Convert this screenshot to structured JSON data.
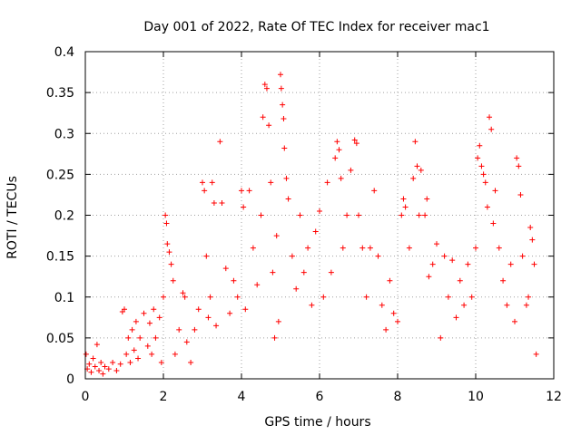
{
  "chart_data": {
    "type": "scatter",
    "title": "Day 001 of 2022, Rate Of TEC Index for receiver mac1",
    "xlabel": "GPS time / hours",
    "ylabel": "ROTI / TECUs",
    "xlim": [
      0,
      12
    ],
    "ylim": [
      0,
      0.4
    ],
    "x_ticks": [
      "0",
      "2",
      "4",
      "6",
      "8",
      "10",
      "12"
    ],
    "y_ticks": [
      "0",
      "0.05",
      "0.1",
      "0.15",
      "0.2",
      "0.25",
      "0.3",
      "0.35",
      "0.4"
    ],
    "grid": true,
    "marker": "+",
    "color": "#ff0000",
    "series": [
      {
        "points": [
          [
            0.02,
            0.03
          ],
          [
            0.05,
            0.012
          ],
          [
            0.1,
            0.018
          ],
          [
            0.15,
            0.008
          ],
          [
            0.2,
            0.025
          ],
          [
            0.25,
            0.015
          ],
          [
            0.3,
            0.042
          ],
          [
            0.35,
            0.01
          ],
          [
            0.4,
            0.02
          ],
          [
            0.45,
            0.006
          ],
          [
            0.5,
            0.015
          ],
          [
            0.6,
            0.012
          ],
          [
            0.7,
            0.02
          ],
          [
            0.8,
            0.01
          ],
          [
            0.9,
            0.018
          ],
          [
            0.95,
            0.082
          ],
          [
            1.0,
            0.085
          ],
          [
            1.05,
            0.03
          ],
          [
            1.1,
            0.05
          ],
          [
            1.15,
            0.02
          ],
          [
            1.2,
            0.06
          ],
          [
            1.25,
            0.035
          ],
          [
            1.3,
            0.07
          ],
          [
            1.35,
            0.025
          ],
          [
            1.4,
            0.05
          ],
          [
            1.5,
            0.08
          ],
          [
            1.6,
            0.04
          ],
          [
            1.65,
            0.068
          ],
          [
            1.7,
            0.03
          ],
          [
            1.75,
            0.085
          ],
          [
            1.8,
            0.05
          ],
          [
            1.9,
            0.075
          ],
          [
            1.95,
            0.02
          ],
          [
            2.0,
            0.1
          ],
          [
            2.05,
            0.2
          ],
          [
            2.08,
            0.19
          ],
          [
            2.1,
            0.165
          ],
          [
            2.15,
            0.155
          ],
          [
            2.2,
            0.14
          ],
          [
            2.25,
            0.12
          ],
          [
            2.3,
            0.03
          ],
          [
            2.4,
            0.06
          ],
          [
            2.5,
            0.105
          ],
          [
            2.55,
            0.1
          ],
          [
            2.6,
            0.045
          ],
          [
            2.7,
            0.02
          ],
          [
            2.8,
            0.06
          ],
          [
            2.9,
            0.085
          ],
          [
            3.0,
            0.24
          ],
          [
            3.05,
            0.23
          ],
          [
            3.1,
            0.15
          ],
          [
            3.15,
            0.075
          ],
          [
            3.2,
            0.1
          ],
          [
            3.25,
            0.24
          ],
          [
            3.3,
            0.215
          ],
          [
            3.35,
            0.065
          ],
          [
            3.45,
            0.29
          ],
          [
            3.5,
            0.215
          ],
          [
            3.6,
            0.135
          ],
          [
            3.7,
            0.08
          ],
          [
            3.8,
            0.12
          ],
          [
            3.9,
            0.1
          ],
          [
            4.0,
            0.23
          ],
          [
            4.05,
            0.21
          ],
          [
            4.1,
            0.085
          ],
          [
            4.2,
            0.23
          ],
          [
            4.3,
            0.16
          ],
          [
            4.4,
            0.115
          ],
          [
            4.5,
            0.2
          ],
          [
            4.55,
            0.32
          ],
          [
            4.6,
            0.36
          ],
          [
            4.65,
            0.355
          ],
          [
            4.7,
            0.31
          ],
          [
            4.75,
            0.24
          ],
          [
            4.8,
            0.13
          ],
          [
            4.85,
            0.05
          ],
          [
            4.9,
            0.175
          ],
          [
            4.95,
            0.07
          ],
          [
            5.0,
            0.372
          ],
          [
            5.02,
            0.355
          ],
          [
            5.05,
            0.335
          ],
          [
            5.08,
            0.318
          ],
          [
            5.1,
            0.282
          ],
          [
            5.15,
            0.245
          ],
          [
            5.2,
            0.22
          ],
          [
            5.3,
            0.15
          ],
          [
            5.4,
            0.11
          ],
          [
            5.5,
            0.2
          ],
          [
            5.6,
            0.13
          ],
          [
            5.7,
            0.16
          ],
          [
            5.8,
            0.09
          ],
          [
            5.9,
            0.18
          ],
          [
            6.0,
            0.205
          ],
          [
            6.1,
            0.1
          ],
          [
            6.2,
            0.24
          ],
          [
            6.3,
            0.13
          ],
          [
            6.4,
            0.27
          ],
          [
            6.45,
            0.29
          ],
          [
            6.5,
            0.28
          ],
          [
            6.55,
            0.245
          ],
          [
            6.6,
            0.16
          ],
          [
            6.7,
            0.2
          ],
          [
            6.8,
            0.255
          ],
          [
            6.9,
            0.292
          ],
          [
            6.95,
            0.288
          ],
          [
            7.0,
            0.2
          ],
          [
            7.1,
            0.16
          ],
          [
            7.2,
            0.1
          ],
          [
            7.3,
            0.16
          ],
          [
            7.4,
            0.23
          ],
          [
            7.5,
            0.15
          ],
          [
            7.6,
            0.09
          ],
          [
            7.7,
            0.06
          ],
          [
            7.8,
            0.12
          ],
          [
            7.9,
            0.08
          ],
          [
            8.0,
            0.07
          ],
          [
            8.1,
            0.2
          ],
          [
            8.15,
            0.22
          ],
          [
            8.2,
            0.21
          ],
          [
            8.3,
            0.16
          ],
          [
            8.4,
            0.245
          ],
          [
            8.45,
            0.29
          ],
          [
            8.5,
            0.26
          ],
          [
            8.55,
            0.2
          ],
          [
            8.6,
            0.255
          ],
          [
            8.7,
            0.2
          ],
          [
            8.75,
            0.22
          ],
          [
            8.8,
            0.125
          ],
          [
            8.9,
            0.14
          ],
          [
            9.0,
            0.165
          ],
          [
            9.1,
            0.05
          ],
          [
            9.2,
            0.15
          ],
          [
            9.3,
            0.1
          ],
          [
            9.4,
            0.145
          ],
          [
            9.5,
            0.075
          ],
          [
            9.6,
            0.12
          ],
          [
            9.7,
            0.09
          ],
          [
            9.8,
            0.14
          ],
          [
            9.9,
            0.1
          ],
          [
            10.0,
            0.16
          ],
          [
            10.05,
            0.27
          ],
          [
            10.1,
            0.285
          ],
          [
            10.15,
            0.26
          ],
          [
            10.2,
            0.25
          ],
          [
            10.25,
            0.24
          ],
          [
            10.3,
            0.21
          ],
          [
            10.35,
            0.32
          ],
          [
            10.4,
            0.305
          ],
          [
            10.45,
            0.19
          ],
          [
            10.5,
            0.23
          ],
          [
            10.6,
            0.16
          ],
          [
            10.7,
            0.12
          ],
          [
            10.8,
            0.09
          ],
          [
            10.9,
            0.14
          ],
          [
            11.0,
            0.07
          ],
          [
            11.05,
            0.27
          ],
          [
            11.1,
            0.26
          ],
          [
            11.15,
            0.225
          ],
          [
            11.2,
            0.15
          ],
          [
            11.3,
            0.09
          ],
          [
            11.35,
            0.1
          ],
          [
            11.4,
            0.185
          ],
          [
            11.45,
            0.17
          ],
          [
            11.5,
            0.14
          ],
          [
            11.55,
            0.03
          ]
        ]
      }
    ]
  }
}
